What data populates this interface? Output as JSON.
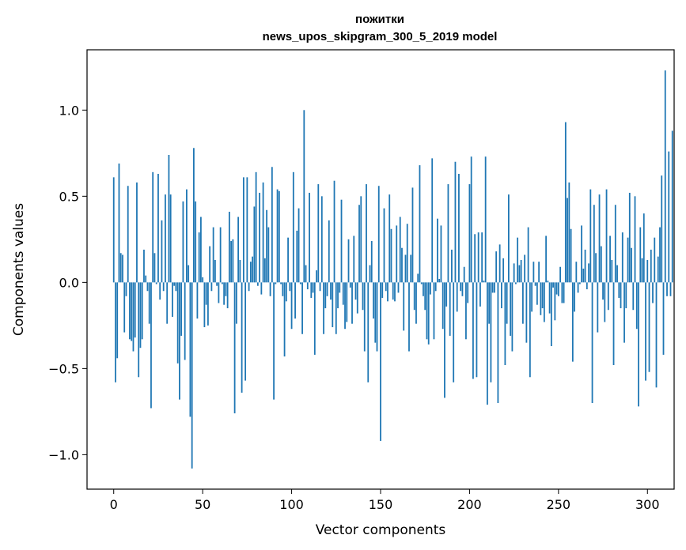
{
  "chart_data": {
    "type": "bar",
    "title": "пожитки",
    "subtitle": "news_upos_skipgram_300_5_2019 model",
    "xlabel": "Vector components",
    "ylabel": "Components values",
    "xlim": [
      -15,
      315
    ],
    "ylim": [
      -1.2,
      1.35
    ],
    "xticks": [
      0,
      50,
      100,
      150,
      200,
      250,
      300
    ],
    "xtick_labels": [
      "0",
      "50",
      "100",
      "150",
      "200",
      "250",
      "300"
    ],
    "yticks": [
      -1.0,
      -0.5,
      0.0,
      0.5,
      1.0
    ],
    "ytick_labels": [
      "−1.0",
      "−0.5",
      "0.0",
      "0.5",
      "1.0"
    ],
    "bar_color": "#1f77b4",
    "grid": false,
    "values": [
      0.61,
      -0.58,
      -0.44,
      0.69,
      0.17,
      0.16,
      -0.29,
      -0.08,
      0.56,
      -0.33,
      -0.34,
      -0.4,
      -0.32,
      0.58,
      -0.55,
      -0.38,
      -0.33,
      0.19,
      0.04,
      -0.05,
      -0.24,
      -0.73,
      0.64,
      0.17,
      -0.01,
      0.63,
      -0.1,
      0.36,
      -0.05,
      0.51,
      -0.24,
      0.74,
      0.51,
      -0.2,
      -0.02,
      -0.05,
      -0.47,
      -0.68,
      -0.31,
      0.47,
      -0.45,
      0.54,
      0.1,
      -0.78,
      -1.08,
      0.78,
      0.47,
      -0.21,
      0.29,
      0.38,
      0.03,
      -0.26,
      -0.13,
      -0.25,
      0.21,
      -0.05,
      0.32,
      0.13,
      -0.02,
      -0.12,
      0.32,
      -0.01,
      -0.13,
      -0.08,
      -0.15,
      0.41,
      0.24,
      0.25,
      -0.76,
      -0.24,
      0.38,
      0.13,
      -0.64,
      0.61,
      -0.57,
      0.61,
      -0.05,
      0.12,
      0.15,
      0.44,
      0.64,
      -0.02,
      0.52,
      -0.07,
      0.58,
      0.14,
      0.42,
      0.32,
      -0.08,
      0.67,
      -0.68,
      -0.01,
      0.54,
      0.53,
      -0.01,
      -0.08,
      -0.43,
      -0.11,
      0.26,
      -0.05,
      -0.27,
      0.64,
      -0.21,
      0.3,
      0.43,
      -0.01,
      -0.3,
      1.0,
      0.1,
      -0.04,
      0.52,
      -0.09,
      -0.06,
      -0.42,
      0.07,
      0.57,
      -0.05,
      0.5,
      -0.3,
      -0.15,
      -0.08,
      0.36,
      -0.1,
      -0.26,
      0.59,
      -0.3,
      -0.15,
      -0.06,
      0.48,
      -0.13,
      -0.27,
      -0.23,
      0.25,
      -0.03,
      -0.24,
      0.27,
      -0.1,
      -0.18,
      0.45,
      0.5,
      -0.16,
      -0.4,
      0.57,
      -0.58,
      0.1,
      0.24,
      -0.21,
      -0.35,
      -0.4,
      0.56,
      -0.92,
      -0.09,
      0.43,
      -0.05,
      -0.11,
      0.51,
      0.31,
      -0.1,
      -0.11,
      0.33,
      -0.06,
      0.38,
      0.2,
      -0.28,
      0.16,
      0.34,
      -0.4,
      0.16,
      0.55,
      -0.16,
      -0.24,
      0.05,
      0.68,
      -0.01,
      -0.08,
      -0.16,
      -0.33,
      -0.36,
      -0.07,
      0.72,
      -0.33,
      -0.05,
      0.37,
      0.02,
      0.33,
      -0.27,
      -0.67,
      -0.14,
      0.57,
      -0.31,
      0.19,
      -0.58,
      0.7,
      -0.17,
      0.63,
      -0.05,
      -0.08,
      0.09,
      -0.33,
      -0.12,
      0.57,
      0.73,
      -0.56,
      0.28,
      -0.55,
      0.29,
      -0.14,
      0.29,
      0.01,
      0.73,
      -0.71,
      -0.24,
      -0.58,
      -0.06,
      -0.06,
      0.18,
      -0.7,
      0.22,
      -0.15,
      0.14,
      -0.48,
      -0.24,
      0.51,
      -0.31,
      -0.4,
      0.11,
      -0.01,
      0.26,
      0.1,
      0.13,
      -0.24,
      0.16,
      -0.35,
      0.32,
      -0.55,
      -0.17,
      0.12,
      -0.02,
      -0.13,
      0.12,
      -0.19,
      -0.15,
      -0.23,
      0.27,
      0.01,
      -0.18,
      -0.37,
      -0.03,
      -0.22,
      -0.07,
      -0.08,
      0.09,
      -0.12,
      -0.12,
      0.93,
      0.49,
      0.58,
      0.31,
      -0.46,
      -0.17,
      0.12,
      -0.06,
      -0.01,
      0.33,
      0.08,
      0.19,
      -0.04,
      0.11,
      0.54,
      -0.7,
      0.45,
      0.17,
      -0.29,
      0.51,
      0.21,
      -0.1,
      -0.23,
      0.54,
      -0.16,
      0.27,
      0.13,
      -0.48,
      0.45,
      0.1,
      -0.09,
      -0.15,
      0.29,
      -0.35,
      -0.15,
      0.26,
      0.52,
      0.2,
      -0.16,
      0.5,
      -0.27,
      -0.72,
      0.32,
      0.14,
      0.4,
      -0.57,
      0.13,
      -0.52,
      0.19,
      -0.12,
      0.26,
      -0.61,
      0.15,
      0.32,
      0.62,
      -0.42,
      1.23,
      -0.08,
      0.76,
      -0.08,
      0.88
    ]
  }
}
